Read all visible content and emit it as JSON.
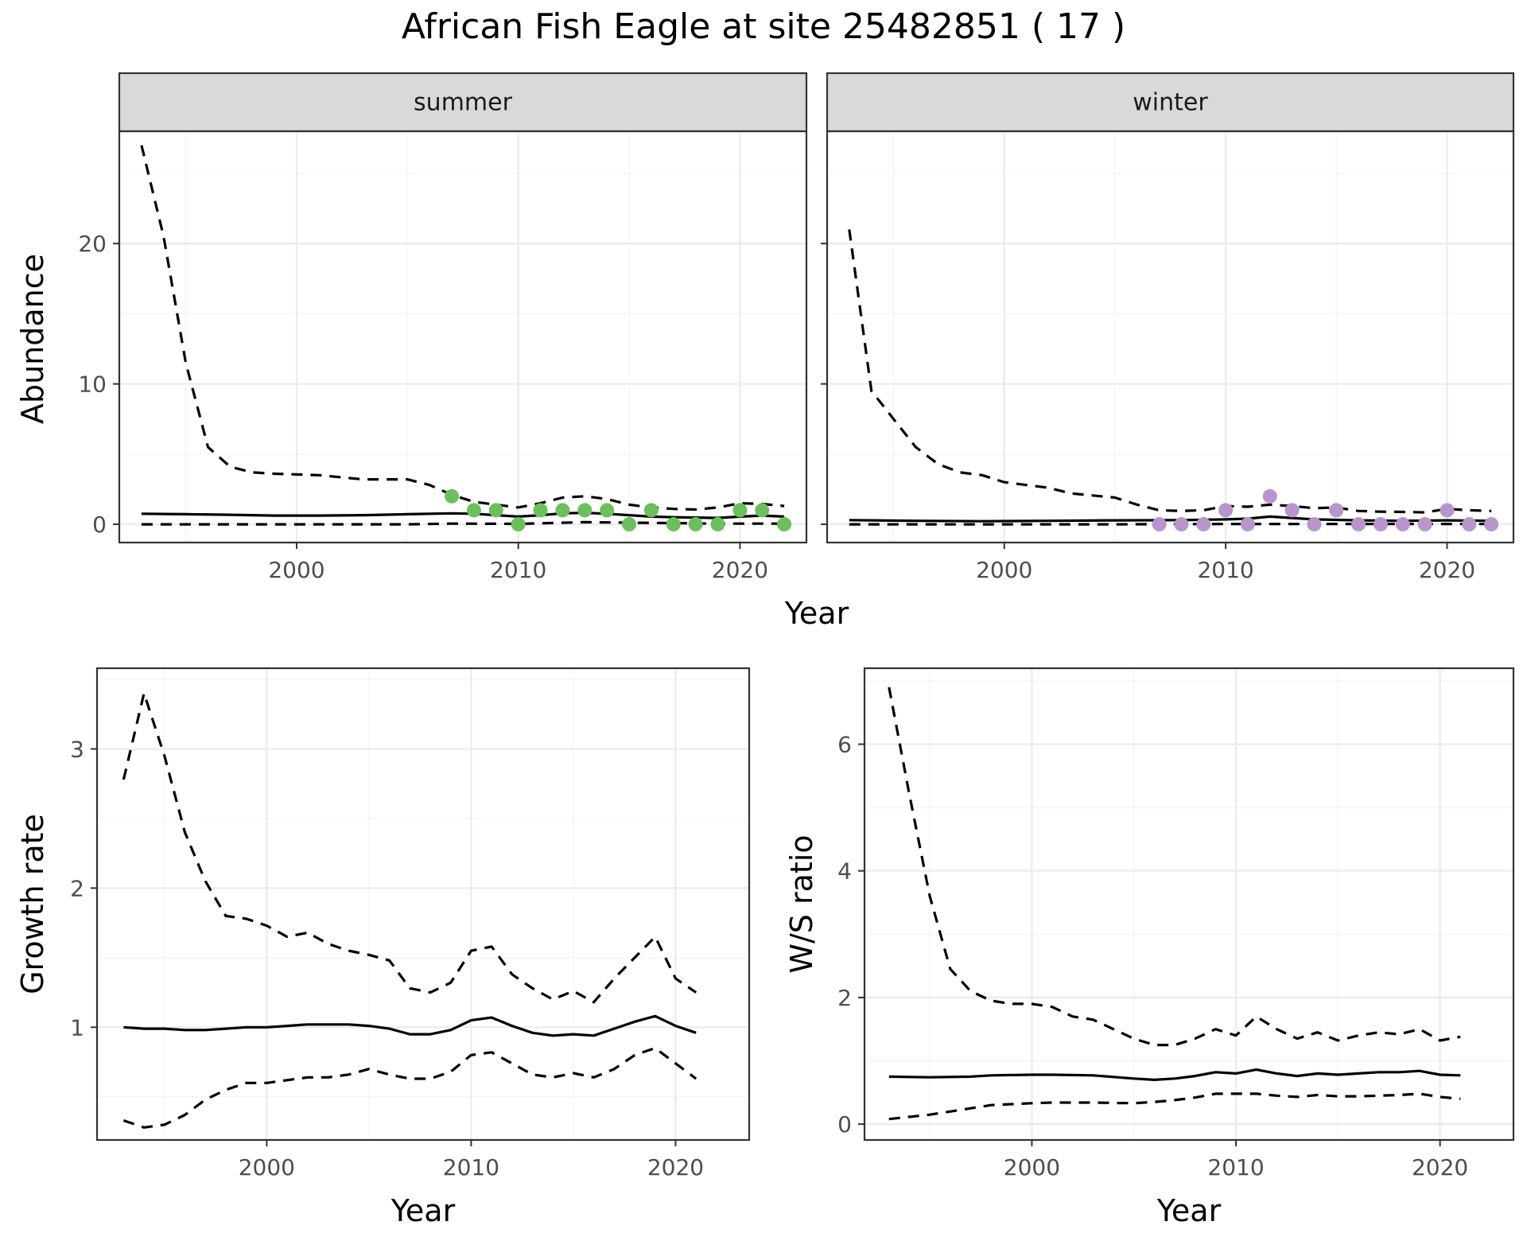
{
  "title": "African Fish Eagle at site 25482851 ( 17 )",
  "colors": {
    "summer_points": "#6cbf5c",
    "winter_points": "#b895cc",
    "line": "#000000"
  },
  "chart_data": [
    {
      "type": "line",
      "facet": "summer",
      "xlabel": "Year",
      "ylabel": "Abundance",
      "xlim": [
        1992,
        2023
      ],
      "ylim": [
        -1.3,
        28
      ],
      "x_ticks": [
        2000,
        2010,
        2020
      ],
      "y_ticks": [
        0,
        10,
        20
      ],
      "grid": true,
      "series": [
        {
          "style": "solid",
          "x": [
            1993,
            1995,
            1997,
            1999,
            2001,
            2003,
            2005,
            2007,
            2008,
            2009,
            2010,
            2011,
            2012,
            2013,
            2014,
            2015,
            2016,
            2017,
            2018,
            2019,
            2020,
            2021,
            2022
          ],
          "values": [
            0.75,
            0.72,
            0.68,
            0.62,
            0.62,
            0.65,
            0.72,
            0.78,
            0.75,
            0.65,
            0.55,
            0.65,
            0.78,
            0.82,
            0.75,
            0.65,
            0.55,
            0.5,
            0.48,
            0.45,
            0.55,
            0.62,
            0.55
          ]
        },
        {
          "style": "dashed",
          "x": [
            1993,
            1994,
            1995,
            1996,
            1997,
            1998,
            1999,
            2001,
            2003,
            2005,
            2006,
            2007,
            2008,
            2009,
            2010,
            2011,
            2012,
            2013,
            2014,
            2015,
            2016,
            2017,
            2018,
            2019,
            2020,
            2021,
            2022
          ],
          "values": [
            27,
            20.5,
            11.5,
            5.5,
            4.1,
            3.7,
            3.6,
            3.5,
            3.2,
            3.2,
            2.8,
            2.1,
            1.6,
            1.4,
            1.2,
            1.5,
            1.9,
            2.0,
            1.8,
            1.4,
            1.2,
            1.1,
            1.05,
            1.2,
            1.5,
            1.45,
            1.3
          ]
        },
        {
          "style": "dashed",
          "x": [
            1993,
            1995,
            2000,
            2005,
            2007,
            2010,
            2013,
            2016,
            2019,
            2022
          ],
          "values": [
            0,
            0,
            0,
            0,
            0.05,
            0.03,
            0.15,
            0.1,
            0.05,
            0.05
          ]
        }
      ],
      "points": {
        "x": [
          2007,
          2008,
          2009,
          2010,
          2011,
          2012,
          2013,
          2014,
          2015,
          2016,
          2017,
          2018,
          2019,
          2020,
          2021,
          2022
        ],
        "values": [
          2,
          1,
          1,
          0,
          1,
          1,
          1,
          1,
          0,
          1,
          0,
          0,
          0,
          1,
          1,
          0
        ]
      }
    },
    {
      "type": "line",
      "facet": "winter",
      "xlabel": "Year",
      "ylabel": "Abundance",
      "xlim": [
        1992,
        2023
      ],
      "ylim": [
        -1.3,
        28
      ],
      "x_ticks": [
        2000,
        2010,
        2020
      ],
      "y_ticks": [
        0,
        10,
        20
      ],
      "grid": true,
      "series": [
        {
          "style": "solid",
          "x": [
            1993,
            1996,
            1999,
            2002,
            2005,
            2008,
            2010,
            2011,
            2012,
            2013,
            2014,
            2016,
            2018,
            2020,
            2022
          ],
          "values": [
            0.3,
            0.25,
            0.22,
            0.25,
            0.28,
            0.3,
            0.35,
            0.4,
            0.55,
            0.45,
            0.35,
            0.28,
            0.25,
            0.28,
            0.25
          ]
        },
        {
          "style": "dashed",
          "x": [
            1993,
            1994,
            1995,
            1996,
            1997,
            1998,
            1999,
            2000,
            2002,
            2003,
            2005,
            2006,
            2007,
            2008,
            2009,
            2010,
            2011,
            2012,
            2013,
            2014,
            2015,
            2016,
            2017,
            2018,
            2019,
            2020,
            2021,
            2022
          ],
          "values": [
            21,
            9.5,
            7.5,
            5.5,
            4.3,
            3.7,
            3.5,
            3.0,
            2.6,
            2.2,
            1.9,
            1.4,
            1.0,
            0.95,
            1.0,
            1.3,
            1.25,
            1.4,
            1.3,
            1.15,
            1.2,
            0.95,
            0.9,
            0.88,
            0.85,
            1.1,
            1.0,
            0.95
          ]
        },
        {
          "style": "dashed",
          "x": [
            1993,
            2000,
            2005,
            2010,
            2015,
            2022
          ],
          "values": [
            0,
            0,
            0,
            0.02,
            0.02,
            0.02
          ]
        }
      ],
      "points": {
        "x": [
          2007,
          2008,
          2009,
          2010,
          2011,
          2012,
          2013,
          2014,
          2015,
          2016,
          2017,
          2018,
          2019,
          2020,
          2021,
          2022
        ],
        "values": [
          0,
          0,
          0,
          1,
          0,
          2,
          1,
          0,
          1,
          0,
          0,
          0,
          0,
          1,
          0,
          0
        ]
      }
    },
    {
      "type": "line",
      "xlabel": "Year",
      "ylabel": "Growth rate",
      "xlim": [
        1991.7,
        2023.6
      ],
      "ylim": [
        0.19,
        3.58
      ],
      "x_ticks": [
        2000,
        2010,
        2020
      ],
      "y_ticks": [
        1,
        2,
        3
      ],
      "grid": true,
      "series": [
        {
          "style": "solid",
          "x": [
            1993,
            1994,
            1995,
            1996,
            1997,
            1998,
            1999,
            2000,
            2001,
            2002,
            2003,
            2004,
            2005,
            2006,
            2007,
            2008,
            2009,
            2010,
            2011,
            2012,
            2013,
            2014,
            2015,
            2016,
            2017,
            2018,
            2019,
            2020,
            2021
          ],
          "values": [
            1.0,
            0.99,
            0.99,
            0.98,
            0.98,
            0.99,
            1.0,
            1.0,
            1.01,
            1.02,
            1.02,
            1.02,
            1.01,
            0.99,
            0.95,
            0.95,
            0.98,
            1.05,
            1.07,
            1.01,
            0.96,
            0.94,
            0.95,
            0.94,
            0.99,
            1.04,
            1.08,
            1.01,
            0.96
          ]
        },
        {
          "style": "dashed",
          "x": [
            1993,
            1994,
            1995,
            1996,
            1997,
            1998,
            1999,
            2000,
            2001,
            2002,
            2003,
            2004,
            2005,
            2006,
            2007,
            2008,
            2009,
            2010,
            2011,
            2012,
            2013,
            2014,
            2015,
            2016,
            2017,
            2018,
            2019,
            2020,
            2021
          ],
          "values": [
            2.78,
            3.4,
            2.95,
            2.4,
            2.05,
            1.8,
            1.78,
            1.73,
            1.65,
            1.68,
            1.6,
            1.55,
            1.52,
            1.48,
            1.28,
            1.25,
            1.32,
            1.55,
            1.58,
            1.38,
            1.28,
            1.2,
            1.26,
            1.18,
            1.35,
            1.5,
            1.65,
            1.35,
            1.25
          ]
        },
        {
          "style": "dashed",
          "x": [
            1993,
            1994,
            1995,
            1996,
            1997,
            1998,
            1999,
            2000,
            2001,
            2002,
            2003,
            2004,
            2005,
            2006,
            2007,
            2008,
            2009,
            2010,
            2011,
            2012,
            2013,
            2014,
            2015,
            2016,
            2017,
            2018,
            2019,
            2020,
            2021
          ],
          "values": [
            0.33,
            0.28,
            0.3,
            0.37,
            0.48,
            0.55,
            0.6,
            0.6,
            0.62,
            0.64,
            0.64,
            0.66,
            0.7,
            0.66,
            0.63,
            0.63,
            0.68,
            0.8,
            0.82,
            0.74,
            0.66,
            0.64,
            0.67,
            0.64,
            0.7,
            0.8,
            0.85,
            0.74,
            0.63
          ]
        }
      ]
    },
    {
      "type": "line",
      "xlabel": "Year",
      "ylabel": "W/S ratio",
      "xlim": [
        1991.8,
        2023.6
      ],
      "ylim": [
        -0.25,
        7.2
      ],
      "x_ticks": [
        2000,
        2010,
        2020
      ],
      "y_ticks": [
        0,
        2,
        4,
        6
      ],
      "grid": true,
      "series": [
        {
          "style": "solid",
          "x": [
            1993,
            1995,
            1997,
            1998,
            2000,
            2001,
            2003,
            2005,
            2006,
            2007,
            2008,
            2009,
            2010,
            2011,
            2012,
            2013,
            2014,
            2015,
            2016,
            2017,
            2018,
            2019,
            2020,
            2021
          ],
          "values": [
            0.75,
            0.74,
            0.75,
            0.77,
            0.78,
            0.78,
            0.77,
            0.72,
            0.7,
            0.72,
            0.76,
            0.82,
            0.8,
            0.86,
            0.8,
            0.76,
            0.8,
            0.78,
            0.8,
            0.82,
            0.82,
            0.84,
            0.78,
            0.77
          ]
        },
        {
          "style": "dashed",
          "x": [
            1993,
            1994,
            1995,
            1996,
            1997,
            1998,
            1999,
            2000,
            2001,
            2002,
            2003,
            2004,
            2005,
            2006,
            2007,
            2008,
            2009,
            2010,
            2011,
            2012,
            2013,
            2014,
            2015,
            2016,
            2017,
            2018,
            2019,
            2020,
            2021
          ],
          "values": [
            6.9,
            5.2,
            3.6,
            2.45,
            2.1,
            1.95,
            1.9,
            1.9,
            1.85,
            1.7,
            1.65,
            1.5,
            1.35,
            1.25,
            1.25,
            1.35,
            1.5,
            1.4,
            1.7,
            1.5,
            1.35,
            1.45,
            1.32,
            1.4,
            1.45,
            1.42,
            1.5,
            1.32,
            1.38
          ]
        },
        {
          "style": "dashed",
          "x": [
            1993,
            1995,
            1997,
            1998,
            2000,
            2001,
            2003,
            2005,
            2006,
            2007,
            2008,
            2009,
            2010,
            2011,
            2012,
            2013,
            2014,
            2015,
            2016,
            2017,
            2018,
            2019,
            2020,
            2021
          ],
          "values": [
            0.08,
            0.15,
            0.25,
            0.3,
            0.33,
            0.34,
            0.34,
            0.33,
            0.35,
            0.38,
            0.42,
            0.48,
            0.48,
            0.48,
            0.45,
            0.43,
            0.46,
            0.44,
            0.44,
            0.45,
            0.46,
            0.48,
            0.43,
            0.4
          ]
        }
      ]
    }
  ]
}
